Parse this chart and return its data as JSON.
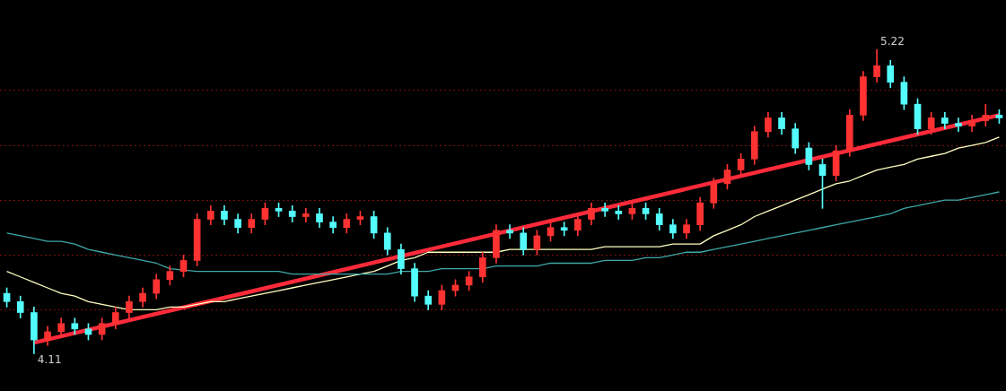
{
  "chart_data": {
    "type": "candlestick",
    "categories": [
      null,
      null,
      null,
      null,
      null,
      null,
      null,
      null,
      null,
      null,
      null,
      null,
      null,
      null,
      null,
      null,
      null,
      null,
      null,
      null,
      null,
      null,
      null,
      null,
      null,
      null,
      null,
      null,
      null,
      null,
      null,
      null,
      null,
      null,
      null,
      null,
      null,
      null,
      null,
      null,
      null,
      null,
      null,
      null,
      null,
      null,
      null,
      null,
      null,
      null,
      null,
      null,
      null,
      null,
      null,
      null,
      null,
      null,
      null,
      null,
      null,
      null,
      null,
      null,
      null,
      null,
      null,
      null,
      null,
      null,
      null,
      null,
      null,
      null
    ],
    "ohlc": [
      [
        4.33,
        4.35,
        4.28,
        4.3
      ],
      [
        4.3,
        4.32,
        4.24,
        4.26
      ],
      [
        4.26,
        4.28,
        4.11,
        4.16
      ],
      [
        4.16,
        4.21,
        4.14,
        4.19
      ],
      [
        4.19,
        4.24,
        4.17,
        4.22
      ],
      [
        4.22,
        4.24,
        4.18,
        4.2
      ],
      [
        4.2,
        4.22,
        4.16,
        4.18
      ],
      [
        4.18,
        4.24,
        4.16,
        4.22
      ],
      [
        4.22,
        4.28,
        4.2,
        4.26
      ],
      [
        4.26,
        4.32,
        4.24,
        4.3
      ],
      [
        4.3,
        4.35,
        4.28,
        4.33
      ],
      [
        4.33,
        4.4,
        4.31,
        4.38
      ],
      [
        4.38,
        4.43,
        4.36,
        4.41
      ],
      [
        4.41,
        4.47,
        4.39,
        4.45
      ],
      [
        4.45,
        4.62,
        4.43,
        4.6
      ],
      [
        4.6,
        4.65,
        4.58,
        4.63
      ],
      [
        4.63,
        4.65,
        4.58,
        4.6
      ],
      [
        4.6,
        4.62,
        4.55,
        4.57
      ],
      [
        4.57,
        4.62,
        4.55,
        4.6
      ],
      [
        4.6,
        4.66,
        4.58,
        4.64
      ],
      [
        4.64,
        4.66,
        4.61,
        4.63
      ],
      [
        4.63,
        4.65,
        4.59,
        4.61
      ],
      [
        4.61,
        4.64,
        4.59,
        4.62
      ],
      [
        4.62,
        4.64,
        4.57,
        4.59
      ],
      [
        4.59,
        4.61,
        4.55,
        4.57
      ],
      [
        4.57,
        4.62,
        4.55,
        4.6
      ],
      [
        4.6,
        4.63,
        4.58,
        4.61
      ],
      [
        4.61,
        4.63,
        4.53,
        4.55
      ],
      [
        4.55,
        4.57,
        4.47,
        4.49
      ],
      [
        4.49,
        4.51,
        4.4,
        4.42
      ],
      [
        4.42,
        4.44,
        4.3,
        4.32
      ],
      [
        4.32,
        4.34,
        4.27,
        4.29
      ],
      [
        4.29,
        4.36,
        4.27,
        4.34
      ],
      [
        4.34,
        4.38,
        4.32,
        4.36
      ],
      [
        4.36,
        4.41,
        4.34,
        4.39
      ],
      [
        4.39,
        4.48,
        4.37,
        4.46
      ],
      [
        4.46,
        4.58,
        4.44,
        4.56
      ],
      [
        4.56,
        4.58,
        4.53,
        4.55
      ],
      [
        4.55,
        4.57,
        4.47,
        4.49
      ],
      [
        4.49,
        4.56,
        4.47,
        4.54
      ],
      [
        4.54,
        4.59,
        4.52,
        4.57
      ],
      [
        4.57,
        4.59,
        4.54,
        4.56
      ],
      [
        4.56,
        4.62,
        4.54,
        4.6
      ],
      [
        4.6,
        4.66,
        4.58,
        4.64
      ],
      [
        4.64,
        4.66,
        4.61,
        4.63
      ],
      [
        4.63,
        4.65,
        4.6,
        4.62
      ],
      [
        4.62,
        4.66,
        4.6,
        4.64
      ],
      [
        4.64,
        4.66,
        4.6,
        4.62
      ],
      [
        4.62,
        4.64,
        4.56,
        4.58
      ],
      [
        4.58,
        4.6,
        4.53,
        4.55
      ],
      [
        4.55,
        4.6,
        4.53,
        4.58
      ],
      [
        4.58,
        4.68,
        4.56,
        4.66
      ],
      [
        4.66,
        4.75,
        4.64,
        4.73
      ],
      [
        4.73,
        4.8,
        4.71,
        4.78
      ],
      [
        4.78,
        4.84,
        4.76,
        4.82
      ],
      [
        4.82,
        4.94,
        4.8,
        4.92
      ],
      [
        4.92,
        4.99,
        4.9,
        4.97
      ],
      [
        4.97,
        4.99,
        4.91,
        4.93
      ],
      [
        4.93,
        4.95,
        4.84,
        4.86
      ],
      [
        4.86,
        4.88,
        4.78,
        4.8
      ],
      [
        4.8,
        4.82,
        4.64,
        4.76
      ],
      [
        4.76,
        4.87,
        4.74,
        4.85
      ],
      [
        4.85,
        5.0,
        4.83,
        4.98
      ],
      [
        4.98,
        5.14,
        4.96,
        5.12
      ],
      [
        5.12,
        5.22,
        5.1,
        5.16
      ],
      [
        5.16,
        5.18,
        5.08,
        5.1
      ],
      [
        5.1,
        5.12,
        5.0,
        5.02
      ],
      [
        5.02,
        5.04,
        4.91,
        4.93
      ],
      [
        4.93,
        4.99,
        4.91,
        4.97
      ],
      [
        4.97,
        4.99,
        4.93,
        4.95
      ],
      [
        4.95,
        4.97,
        4.92,
        4.94
      ],
      [
        4.94,
        4.98,
        4.92,
        4.96
      ],
      [
        4.96,
        5.02,
        4.94,
        4.98
      ],
      [
        4.98,
        5.0,
        4.95,
        4.97
      ]
    ],
    "colors": [
      "#54fcfc",
      "#54fcfc",
      "#54fcfc",
      "#ff3232",
      "#ff3232",
      "#54fcfc",
      "#54fcfc",
      "#ff3232",
      "#ff3232",
      "#ff3232",
      "#ff3232",
      "#ff3232",
      "#ff3232",
      "#ff3232",
      "#ff3232",
      "#ff3232",
      "#54fcfc",
      "#54fcfc",
      "#ff3232",
      "#ff3232",
      "#54fcfc",
      "#54fcfc",
      "#ff3232",
      "#54fcfc",
      "#54fcfc",
      "#ff3232",
      "#ff3232",
      "#54fcfc",
      "#54fcfc",
      "#54fcfc",
      "#54fcfc",
      "#54fcfc",
      "#ff3232",
      "#ff3232",
      "#ff3232",
      "#ff3232",
      "#ff3232",
      "#54fcfc",
      "#54fcfc",
      "#ff3232",
      "#ff3232",
      "#54fcfc",
      "#ff3232",
      "#ff3232",
      "#54fcfc",
      "#54fcfc",
      "#ff3232",
      "#54fcfc",
      "#54fcfc",
      "#54fcfc",
      "#ff3232",
      "#ff3232",
      "#ff3232",
      "#ff3232",
      "#ff3232",
      "#ff3232",
      "#ff3232",
      "#54fcfc",
      "#54fcfc",
      "#54fcfc",
      "#54fcfc",
      "#ff3232",
      "#ff3232",
      "#ff3232",
      "#ff3232",
      "#54fcfc",
      "#54fcfc",
      "#54fcfc",
      "#ff3232",
      "#54fcfc",
      "#54fcfc",
      "#ff3232",
      "#ff3232",
      "#54fcfc"
    ],
    "series": [
      {
        "type": "line",
        "color": "#3fa8a8",
        "values": [
          4.55,
          4.54,
          4.53,
          4.52,
          4.52,
          4.51,
          4.49,
          4.48,
          4.47,
          4.46,
          4.45,
          4.44,
          4.42,
          null,
          4.41,
          4.41,
          4.41,
          4.41,
          4.41,
          4.41,
          4.41,
          4.4,
          4.4,
          4.4,
          4.4,
          4.4,
          4.4,
          4.4,
          4.4,
          4.41,
          4.41,
          4.41,
          4.42,
          4.42,
          4.42,
          4.42,
          4.43,
          4.43,
          4.43,
          4.43,
          4.44,
          4.44,
          4.44,
          4.44,
          4.45,
          4.45,
          4.45,
          4.46,
          4.46,
          4.47,
          4.48,
          4.48,
          4.49,
          4.5,
          4.51,
          4.52,
          4.53,
          4.54,
          4.55,
          4.56,
          4.57,
          4.58,
          4.59,
          4.6,
          4.61,
          4.62,
          4.64,
          4.65,
          4.66,
          4.67,
          4.67,
          4.68,
          4.69,
          4.7
        ]
      },
      {
        "type": "line",
        "color": "#ffffc0",
        "values": [
          4.41,
          4.39,
          4.37,
          4.35,
          4.33,
          4.32,
          4.3,
          4.29,
          4.28,
          4.27,
          4.27,
          4.27,
          4.28,
          4.28,
          4.29,
          4.3,
          4.3,
          4.31,
          4.32,
          4.33,
          4.34,
          4.35,
          4.36,
          4.37,
          4.38,
          4.39,
          4.4,
          4.41,
          4.43,
          4.45,
          4.46,
          4.48,
          4.48,
          4.48,
          4.48,
          4.48,
          4.48,
          4.49,
          4.49,
          4.49,
          4.49,
          4.49,
          4.49,
          4.49,
          4.5,
          4.5,
          4.5,
          4.5,
          4.5,
          4.51,
          4.51,
          4.51,
          4.54,
          4.56,
          4.58,
          4.61,
          4.63,
          4.65,
          4.67,
          4.69,
          4.71,
          4.73,
          4.74,
          4.76,
          4.78,
          4.79,
          4.8,
          4.82,
          4.83,
          4.84,
          4.86,
          4.87,
          4.88,
          4.9
        ]
      },
      {
        "type": "line",
        "color": "#ff2a3a",
        "values": [
          null,
          null,
          4.15,
          null,
          null,
          null,
          null,
          null,
          null,
          null,
          null,
          null,
          null,
          null,
          null,
          null,
          null,
          null,
          null,
          null,
          null,
          null,
          null,
          null,
          null,
          null,
          null,
          null,
          null,
          null,
          null,
          null,
          null,
          null,
          null,
          null,
          null,
          null,
          null,
          null,
          null,
          null,
          null,
          null,
          null,
          null,
          null,
          null,
          null,
          null,
          null,
          null,
          null,
          null,
          null,
          null,
          null,
          null,
          null,
          null,
          null,
          null,
          null,
          null,
          null,
          null,
          null,
          null,
          null,
          null,
          null,
          null,
          null,
          4.98
        ]
      }
    ],
    "annotations": [
      "4.11",
      "5.22"
    ],
    "yticks": [
      {
        "value": 4.27,
        "label": null
      },
      {
        "value": 4.47,
        "label": null
      },
      {
        "value": 4.67,
        "label": null
      },
      {
        "value": 4.87,
        "label": null
      },
      {
        "value": 5.07,
        "label": null
      }
    ],
    "grid": "y",
    "tick_labels": false
  }
}
